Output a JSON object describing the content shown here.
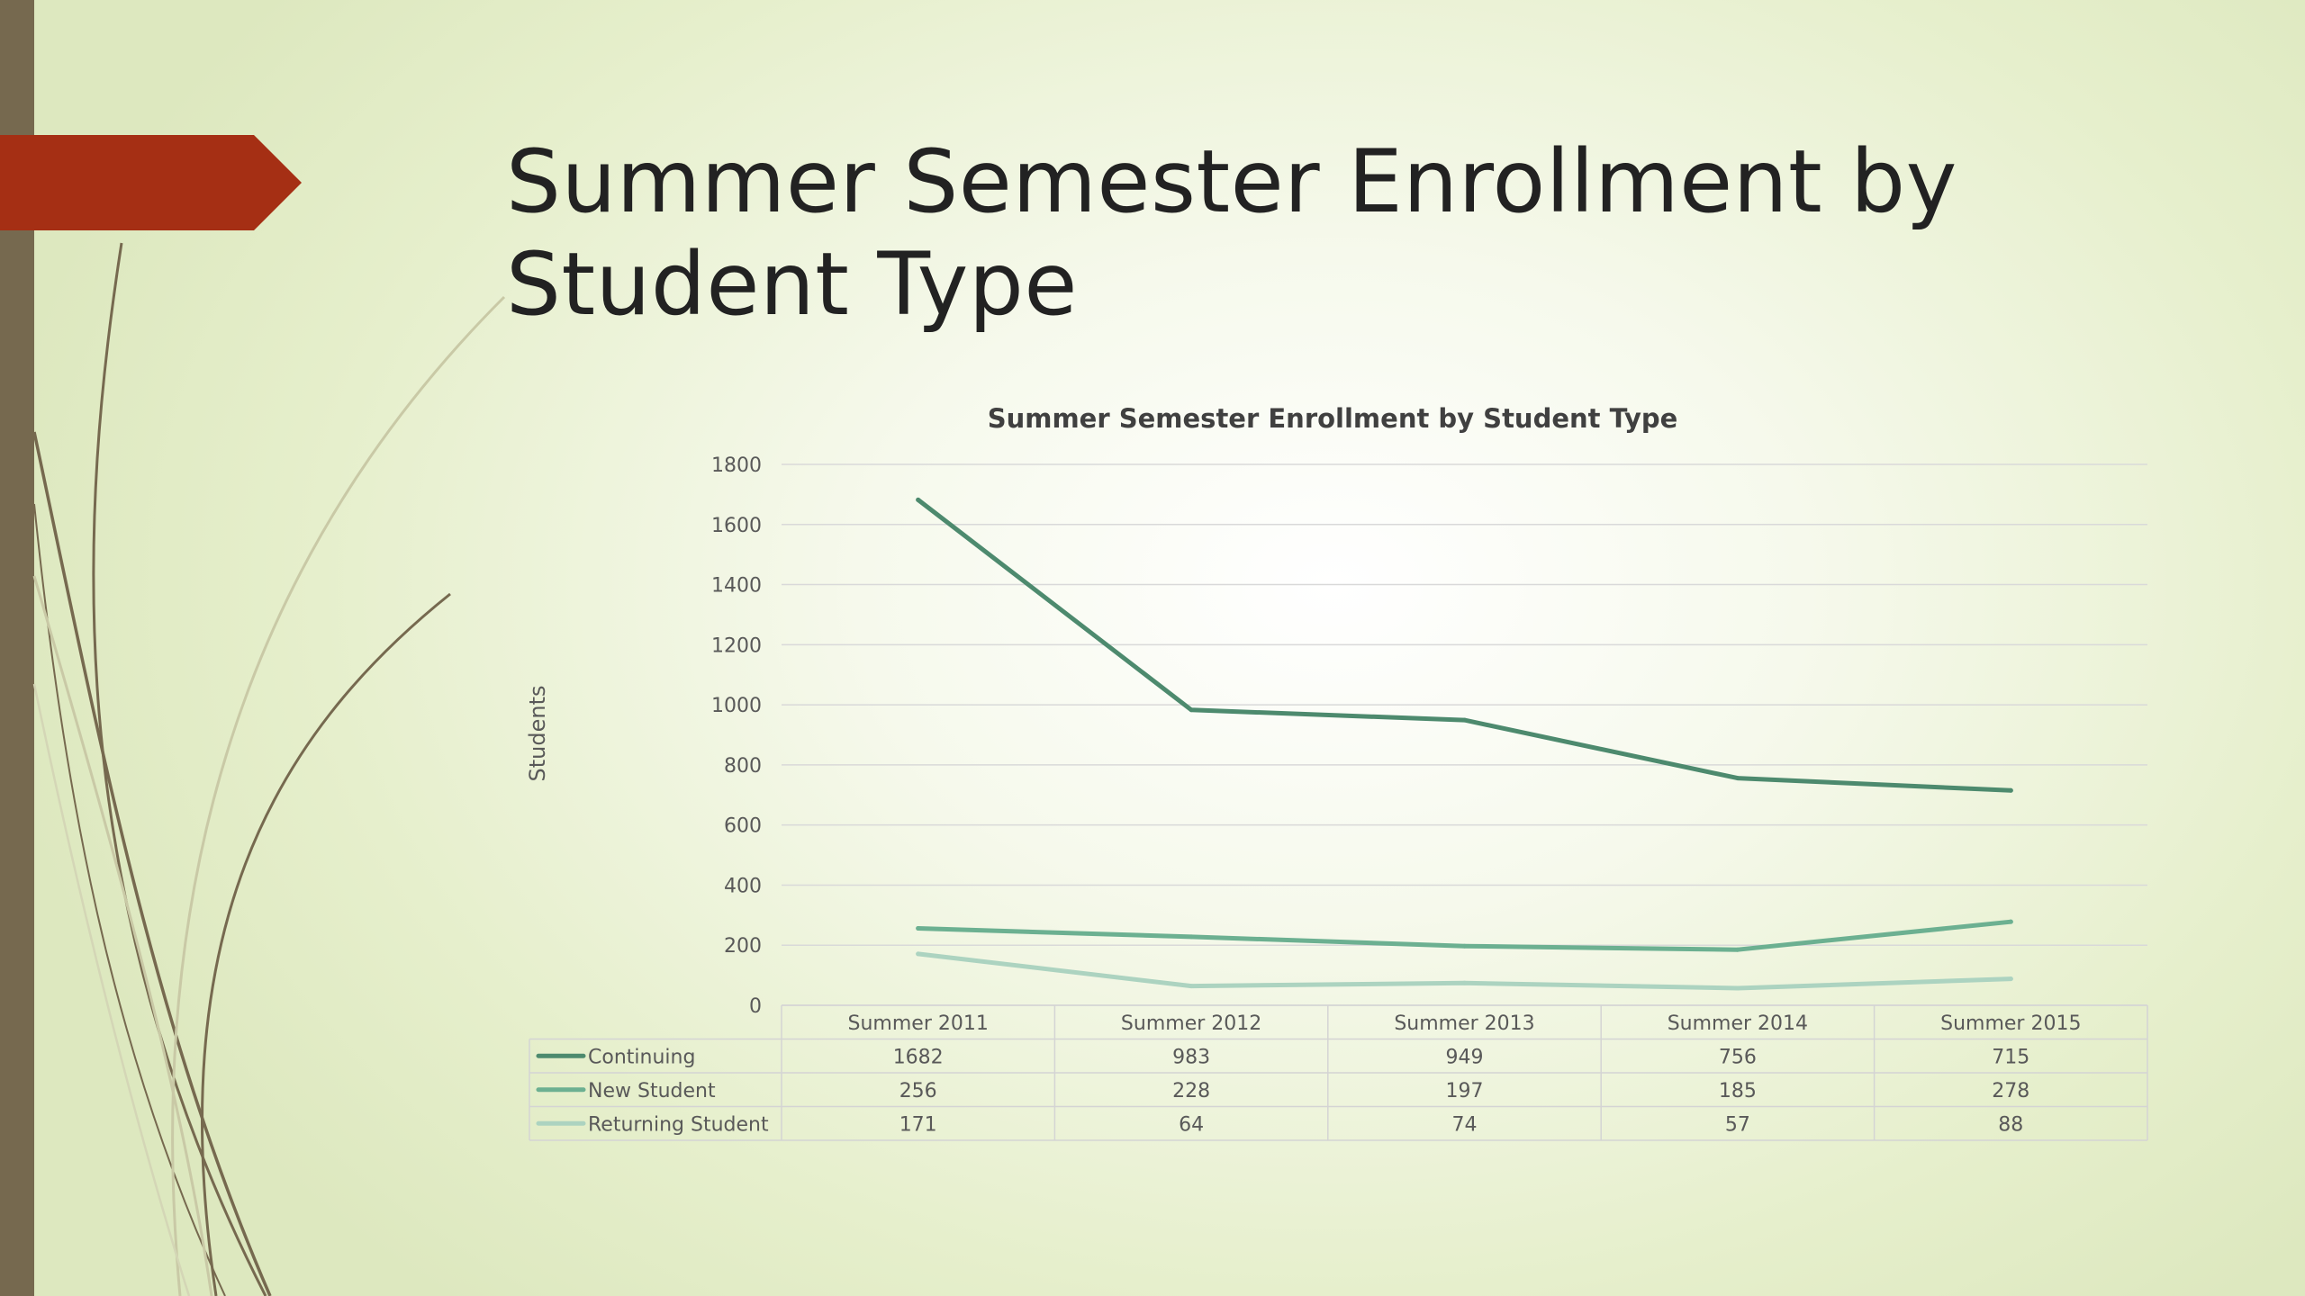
{
  "slide": {
    "title": "Summer Semester Enrollment by Student Type"
  },
  "colors": {
    "left_bar": "#76694f",
    "arrow_tag": "#a52f14",
    "series": [
      "#4d8a6e",
      "#6cb091",
      "#acd3c0"
    ]
  },
  "chart_data": {
    "type": "line",
    "title": "Summer Semester Enrollment by Student Type",
    "ylabel": "Students",
    "xlabel": "",
    "ylim": [
      0,
      1800
    ],
    "yticks": [
      "0",
      "200",
      "400",
      "600",
      "800",
      "1000",
      "1200",
      "1400",
      "1600",
      "1800"
    ],
    "categories": [
      "Summer 2011",
      "Summer 2012",
      "Summer 2013",
      "Summer 2014",
      "Summer 2015"
    ],
    "grid": true,
    "legend": "data-table",
    "series": [
      {
        "name": "Continuing",
        "values": [
          1682,
          983,
          949,
          756,
          715
        ]
      },
      {
        "name": "New Student",
        "values": [
          256,
          228,
          197,
          185,
          278
        ]
      },
      {
        "name": "Returning Student",
        "values": [
          171,
          64,
          74,
          57,
          88
        ]
      }
    ]
  }
}
